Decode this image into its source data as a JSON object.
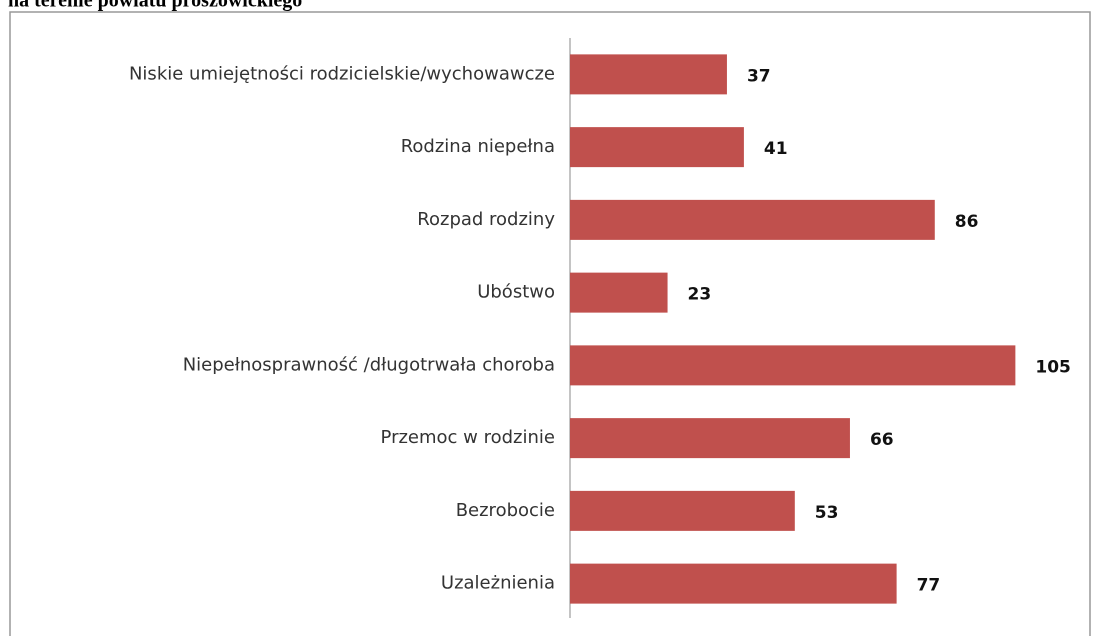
{
  "chart_data": {
    "type": "bar",
    "orientation": "horizontal",
    "title": "na terenie powiatu proszowickiego",
    "categories": [
      "Niskie umiejętności rodzicielskie/wychowawcze",
      "Rodzina niepełna",
      "Rozpad rodziny",
      "Ubóstwo",
      "Niepełnosprawność /długotrwała choroba",
      "Przemoc w rodzinie",
      "Bezrobocie",
      "Uzależnienia"
    ],
    "values": [
      37,
      41,
      86,
      23,
      105,
      66,
      53,
      77
    ],
    "color": "#c0504d",
    "xlim": [
      0,
      120
    ]
  }
}
